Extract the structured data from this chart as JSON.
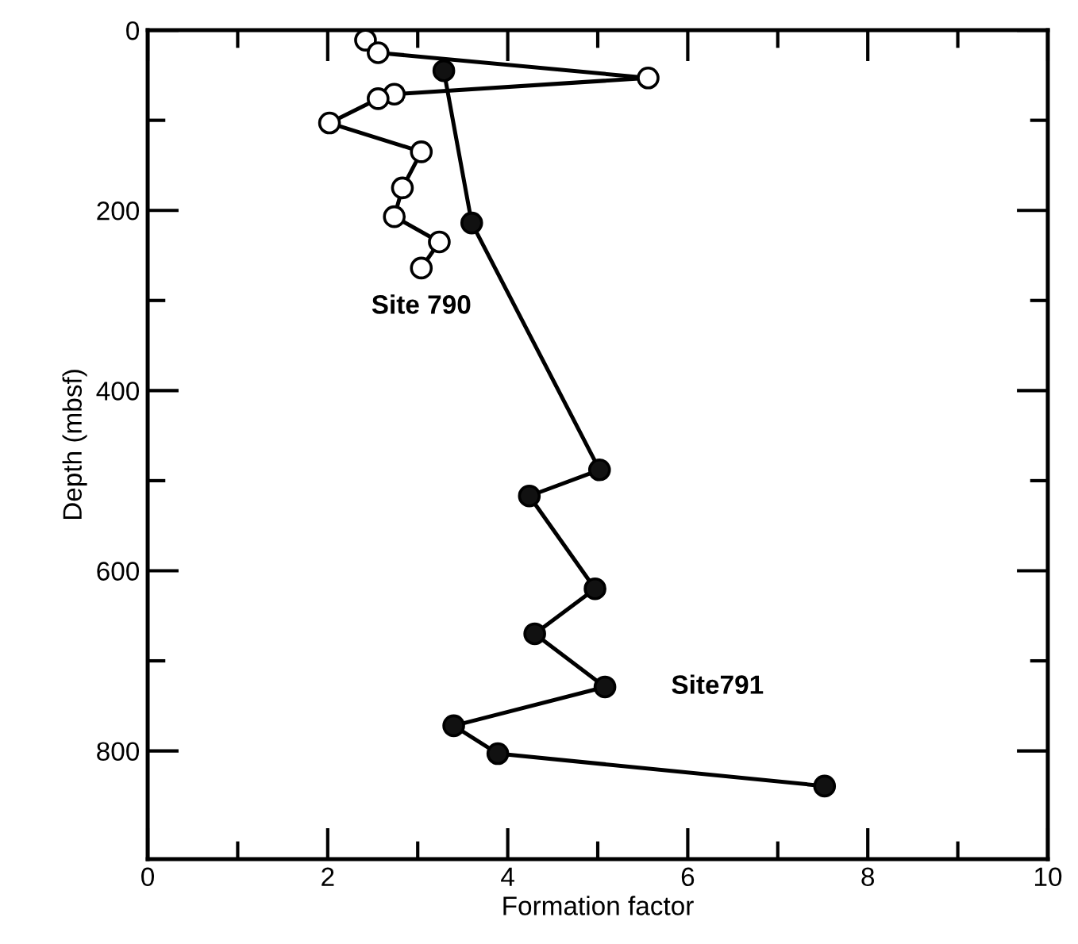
{
  "chart_data": {
    "type": "line",
    "xlabel": "Formation factor",
    "ylabel": "Depth (mbsf)",
    "xlim": [
      0,
      10
    ],
    "ylim": [
      920,
      0
    ],
    "xticks": [
      0,
      {
        "value": 1,
        "label": null
      },
      2,
      {
        "value": 3,
        "label": null
      },
      4,
      {
        "value": 5,
        "label": null
      },
      6,
      {
        "value": 7,
        "label": null
      },
      8,
      {
        "value": 9,
        "label": null
      },
      10
    ],
    "yticks": [
      0,
      {
        "value": 100,
        "label": null
      },
      200,
      {
        "value": 300,
        "label": null
      },
      400,
      {
        "value": 500,
        "label": null
      },
      600,
      {
        "value": 700,
        "label": null
      },
      800
    ],
    "grid": false,
    "legend": false,
    "marker": "circle",
    "line_style": "solid",
    "series": [
      {
        "name": "Site 790",
        "color": "#ffffff",
        "x": [
          2.42,
          2.56,
          5.56,
          2.74,
          2.56,
          2.02,
          3.04,
          2.83,
          2.74,
          3.24,
          3.04
        ],
        "values": [
          11,
          25,
          53,
          71,
          76,
          103,
          135,
          175,
          207,
          235,
          264
        ]
      },
      {
        "name": "Site791",
        "color": "#111111",
        "x": [
          3.29,
          3.6,
          5.02,
          4.24,
          4.97,
          4.3,
          5.08,
          3.4,
          3.89,
          7.52
        ],
        "values": [
          45,
          214,
          488,
          517,
          620,
          670,
          729,
          772,
          803,
          839
        ]
      }
    ]
  }
}
